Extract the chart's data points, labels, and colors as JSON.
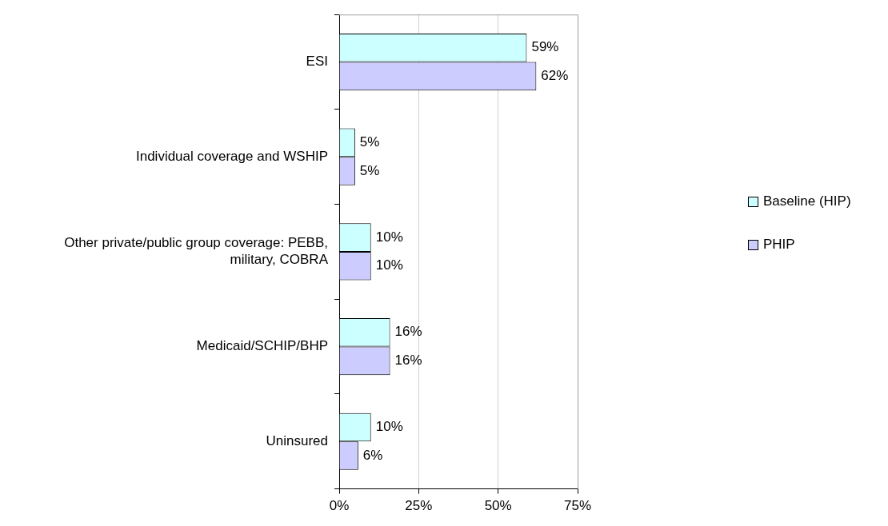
{
  "chart_data": {
    "type": "bar",
    "orientation": "horizontal",
    "categories": [
      "ESI",
      "Individual coverage and WSHIP",
      "Other private/public group coverage: PEBB, military, COBRA",
      "Medicaid/SCHIP/BHP",
      "Uninsured"
    ],
    "series": [
      {
        "name": "Baseline (HIP)",
        "color": "#ccffff",
        "values": [
          59,
          5,
          10,
          16,
          10
        ],
        "value_labels": [
          "59%",
          "5%",
          "10%",
          "16%",
          "10%"
        ]
      },
      {
        "name": "PHIP",
        "color": "#ccccff",
        "values": [
          62,
          5,
          10,
          16,
          6
        ],
        "value_labels": [
          "62%",
          "5%",
          "10%",
          "16%",
          "6%"
        ]
      }
    ],
    "xlim": [
      0,
      75
    ],
    "xticks": [
      {
        "value": 0,
        "label": "0%"
      },
      {
        "value": 25,
        "label": "25%"
      },
      {
        "value": 50,
        "label": "50%"
      },
      {
        "value": 75,
        "label": "75%"
      }
    ],
    "grid": "x",
    "legend": "right"
  }
}
